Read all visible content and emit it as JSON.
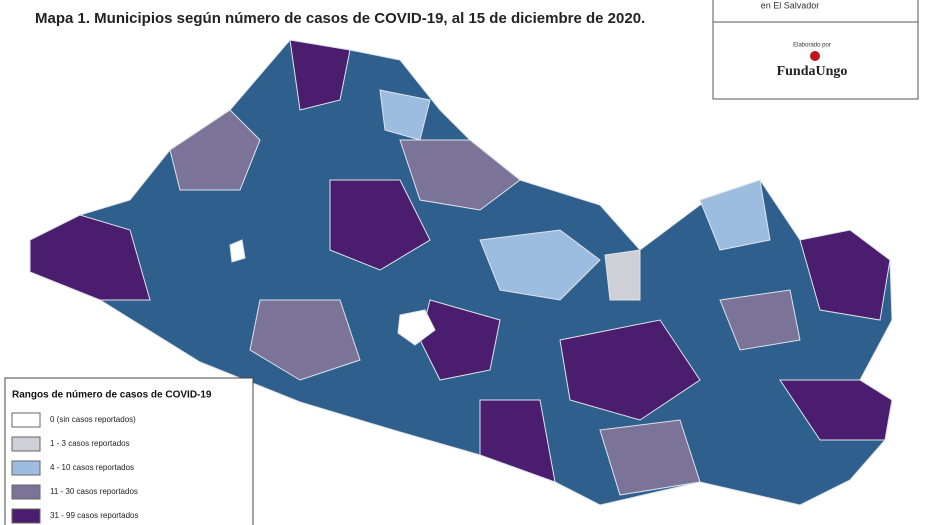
{
  "header": {
    "title": "Mapa 1. Municipios según número de casos de COVID-19, al 15 de diciembre  de 2020.",
    "country": "en El Salvador",
    "credit": "Elaborado por",
    "logo": "FundaUngo"
  },
  "legend": {
    "title": "Rangos de número de casos de  COVID-19",
    "items": [
      {
        "label": "0 (sin casos reportados)",
        "color": "#ffffff"
      },
      {
        "label": "1 - 3 casos reportados",
        "color": "#cfcfd6"
      },
      {
        "label": "4 - 10 casos reportados",
        "color": "#9dbde0"
      },
      {
        "label": "11 - 30 casos reportados",
        "color": "#7b7498"
      },
      {
        "label": "31 - 99 casos reportados",
        "color": "#4b1d6e"
      }
    ]
  }
}
